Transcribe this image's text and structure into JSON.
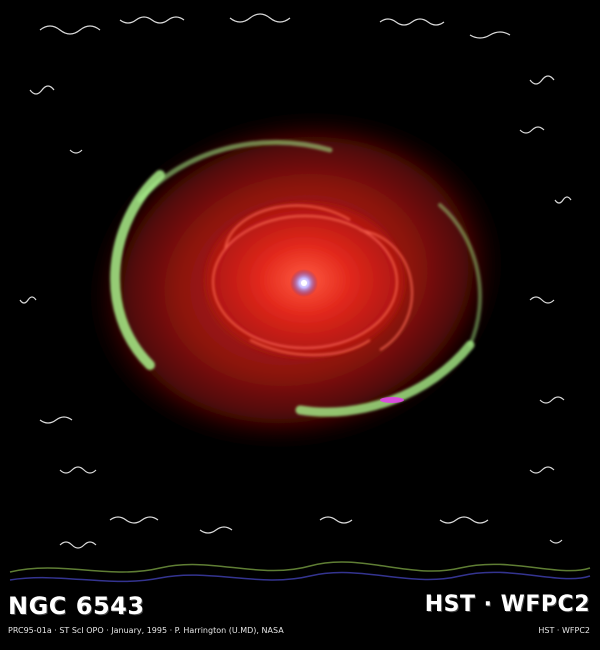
{
  "image": {
    "object_name": "NGC 6543",
    "instrument": "HST · WFPC2",
    "credit_line": "PRC95-01a · ST ScI OPO · January, 1995 · P. Harrington (U.MD), NASA",
    "credit_right": "HST · WFPC2"
  },
  "colors": {
    "background": "#000000",
    "nebula_core": "#ff3a2a",
    "nebula_shell": "#c0201a",
    "outer_halo": "#9a1410",
    "green_rim": "#a8f08a",
    "central_star": "#c7b8ff",
    "label_text": "#ffffff"
  }
}
